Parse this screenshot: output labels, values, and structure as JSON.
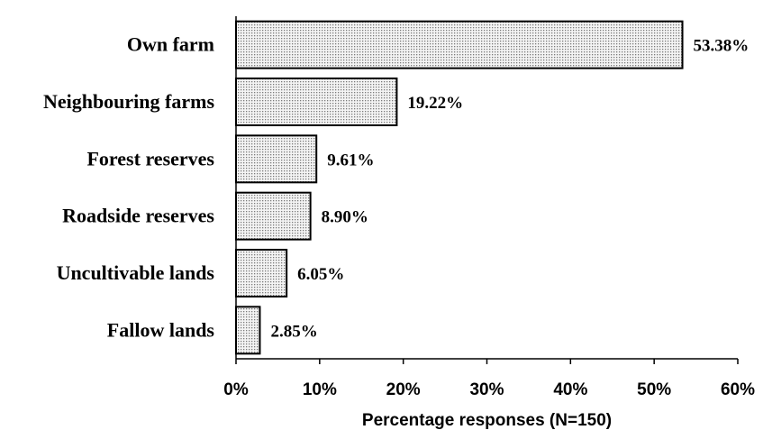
{
  "chart_data": {
    "type": "bar",
    "orientation": "horizontal",
    "categories": [
      "Own farm",
      "Neighbouring farms",
      "Forest reserves",
      "Roadside reserves",
      "Uncultivable lands",
      "Fallow lands"
    ],
    "values": [
      53.38,
      19.22,
      9.61,
      8.9,
      6.05,
      2.85
    ],
    "value_labels": [
      "53.38%",
      "19.22%",
      "9.61%",
      "8.90%",
      "6.05%",
      "2.85%"
    ],
    "xlabel": "Percentage responses (N=150)",
    "xlim": [
      0,
      60
    ],
    "xticks": [
      0,
      10,
      20,
      30,
      40,
      50,
      60
    ],
    "xtick_labels": [
      "0%",
      "10%",
      "20%",
      "30%",
      "40%",
      "50%",
      "60%"
    ],
    "grid": false,
    "legend": "none",
    "bar_fill": "dotted grey pattern",
    "colors": {
      "bar_border": "#000000",
      "bar_dots": "#7a7a7a",
      "background": "#ffffff"
    }
  }
}
